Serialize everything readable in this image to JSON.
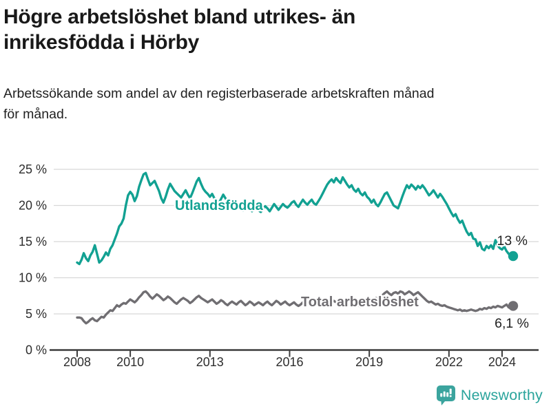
{
  "header": {
    "title_line1": "Högre arbetslöshet bland utrikes- än",
    "title_line2": "inrikesfödda i Hörby",
    "subtitle_line1": "Arbetssökande som andel av den registerbaserade arbetskraften månad",
    "subtitle_line2": "för månad."
  },
  "footer": {
    "brand": "Newsworthy",
    "logo_icon": "newsworthy-speech-bubble-barchart-icon",
    "brand_color": "#2ba49c",
    "icon_color": "#3ba49e"
  },
  "chart_data": {
    "type": "line",
    "title": "Högre arbetslöshet bland utrikes- än inrikesfödda i Hörby",
    "subtitle": "Arbetssökande som andel av den registerbaserade arbetskraften månad för månad.",
    "interval": "monthly",
    "x_start": 2008,
    "x_end_approx": 2024.42,
    "ylim": [
      0,
      25
    ],
    "grid": "horizontal",
    "legend_position": "inline-labels",
    "colors": {
      "grid": "#d8d8d8",
      "axis": "#3c3c3c",
      "annotation": "#1f1f1f"
    },
    "y_ticks": [
      {
        "value": 0,
        "label": "0 %"
      },
      {
        "value": 5,
        "label": "5 %"
      },
      {
        "value": 10,
        "label": "10 %"
      },
      {
        "value": 15,
        "label": "15 %"
      },
      {
        "value": 20,
        "label": "20 %"
      },
      {
        "value": 25,
        "label": "25 %"
      }
    ],
    "x_ticks": [
      {
        "value": 2008,
        "label": "2008"
      },
      {
        "value": 2010,
        "label": "2010"
      },
      {
        "value": 2013,
        "label": "2013"
      },
      {
        "value": 2016,
        "label": "2016"
      },
      {
        "value": 2019,
        "label": "2019"
      },
      {
        "value": 2022,
        "label": "2022"
      },
      {
        "value": 2024,
        "label": "2024"
      }
    ],
    "series": [
      {
        "id": "total-arbetsloshet",
        "label": "Total arbetslöshet",
        "color": "#706e72",
        "end_label": "6,1 %",
        "end_value": 6.1,
        "values": [
          4.5,
          4.5,
          4.4,
          4.0,
          3.7,
          3.9,
          4.2,
          4.4,
          4.1,
          4.0,
          4.3,
          4.6,
          4.5,
          4.9,
          5.2,
          5.5,
          5.4,
          5.8,
          6.2,
          6.0,
          6.3,
          6.5,
          6.4,
          6.7,
          7.0,
          6.8,
          6.6,
          6.9,
          7.3,
          7.6,
          8.0,
          8.1,
          7.8,
          7.4,
          7.1,
          7.4,
          7.7,
          7.5,
          7.2,
          6.9,
          7.1,
          7.4,
          7.2,
          6.9,
          6.6,
          6.4,
          6.7,
          7.0,
          7.2,
          7.0,
          6.8,
          6.5,
          6.7,
          7.0,
          7.3,
          7.5,
          7.2,
          7.0,
          6.8,
          6.6,
          6.8,
          7.0,
          6.7,
          6.4,
          6.6,
          6.9,
          6.7,
          6.4,
          6.2,
          6.5,
          6.7,
          6.5,
          6.3,
          6.6,
          6.8,
          6.5,
          6.2,
          6.4,
          6.7,
          6.5,
          6.2,
          6.4,
          6.6,
          6.4,
          6.2,
          6.5,
          6.7,
          6.4,
          6.2,
          6.5,
          6.8,
          6.6,
          6.3,
          6.5,
          6.7,
          6.4,
          6.2,
          6.4,
          6.6,
          6.3,
          6.1,
          6.3,
          6.6,
          6.8,
          6.5,
          6.3,
          6.5,
          6.7,
          6.5,
          6.3,
          6.5,
          6.7,
          6.4,
          6.2,
          6.4,
          6.6,
          6.8,
          6.6,
          6.4,
          6.6,
          6.8,
          6.6,
          6.4,
          6.2,
          6.4,
          6.6,
          6.4,
          6.2,
          6.0,
          6.2,
          6.4,
          6.6,
          6.6,
          6.8,
          7.0,
          7.2,
          7.0,
          7.3,
          7.6,
          7.9,
          8.1,
          7.8,
          7.6,
          7.9,
          8.0,
          7.8,
          8.1,
          8.0,
          7.7,
          7.9,
          8.1,
          7.9,
          7.6,
          7.8,
          8.0,
          7.7,
          7.4,
          7.1,
          6.8,
          6.6,
          6.7,
          6.5,
          6.3,
          6.4,
          6.2,
          6.1,
          6.2,
          6.0,
          5.9,
          5.8,
          5.7,
          5.6,
          5.5,
          5.6,
          5.4,
          5.5,
          5.4,
          5.5,
          5.6,
          5.5,
          5.4,
          5.5,
          5.7,
          5.6,
          5.8,
          5.7,
          5.9,
          5.8,
          6.0,
          5.9,
          6.1,
          6.0,
          5.9,
          6.1,
          6.3,
          5.9,
          5.8,
          6.1
        ]
      },
      {
        "id": "utlandsfodda",
        "label": "Utlandsfödda",
        "color": "#12a192",
        "end_label": "13 %",
        "end_value": 13,
        "values": [
          12.1,
          11.9,
          12.5,
          13.4,
          12.7,
          12.3,
          13.1,
          13.6,
          14.5,
          13.3,
          12.1,
          12.4,
          12.9,
          13.5,
          13.1,
          14.0,
          14.5,
          15.3,
          16.1,
          17.1,
          17.5,
          18.2,
          20.0,
          21.4,
          21.9,
          21.5,
          20.6,
          21.3,
          22.6,
          23.5,
          24.3,
          24.5,
          23.6,
          22.8,
          23.1,
          23.4,
          22.7,
          22.0,
          21.0,
          20.4,
          21.2,
          22.2,
          23.0,
          22.5,
          22.0,
          21.7,
          21.4,
          21.1,
          21.6,
          22.1,
          21.5,
          21.0,
          21.7,
          22.5,
          23.3,
          23.8,
          23.0,
          22.3,
          21.9,
          21.6,
          21.2,
          21.6,
          21.0,
          20.6,
          20.3,
          20.9,
          21.5,
          21.0,
          20.5,
          20.1,
          19.8,
          19.6,
          19.9,
          20.2,
          19.7,
          19.3,
          19.7,
          20.1,
          19.6,
          19.2,
          19.5,
          19.8,
          19.3,
          19.1,
          19.5,
          19.9,
          19.6,
          19.2,
          19.7,
          20.2,
          19.8,
          19.4,
          19.8,
          20.2,
          19.9,
          19.7,
          20.0,
          20.4,
          20.6,
          20.1,
          19.8,
          20.3,
          20.8,
          20.4,
          20.1,
          20.5,
          20.8,
          20.3,
          20.1,
          20.6,
          21.1,
          21.7,
          22.3,
          22.9,
          23.3,
          23.6,
          23.2,
          23.8,
          23.4,
          23.1,
          23.9,
          23.4,
          22.9,
          22.5,
          22.8,
          22.2,
          21.9,
          22.3,
          21.7,
          21.4,
          21.8,
          21.2,
          20.9,
          20.4,
          20.8,
          20.2,
          19.9,
          20.4,
          21.0,
          21.6,
          21.8,
          21.2,
          20.6,
          20.0,
          19.8,
          19.6,
          20.4,
          21.3,
          22.1,
          22.8,
          22.4,
          22.9,
          22.6,
          22.2,
          22.7,
          22.4,
          22.8,
          22.4,
          21.9,
          21.4,
          21.7,
          22.1,
          21.6,
          21.1,
          21.6,
          21.2,
          20.7,
          20.2,
          19.6,
          19.0,
          18.5,
          18.8,
          18.1,
          17.6,
          17.9,
          17.1,
          16.4,
          15.9,
          16.2,
          15.4,
          15.3,
          14.4,
          14.9,
          14.0,
          13.8,
          14.4,
          14.1,
          14.5,
          14.0,
          15.2,
          14.5,
          14.1,
          13.9,
          14.3,
          13.7,
          13.3,
          13.1,
          13.0
        ]
      }
    ]
  }
}
